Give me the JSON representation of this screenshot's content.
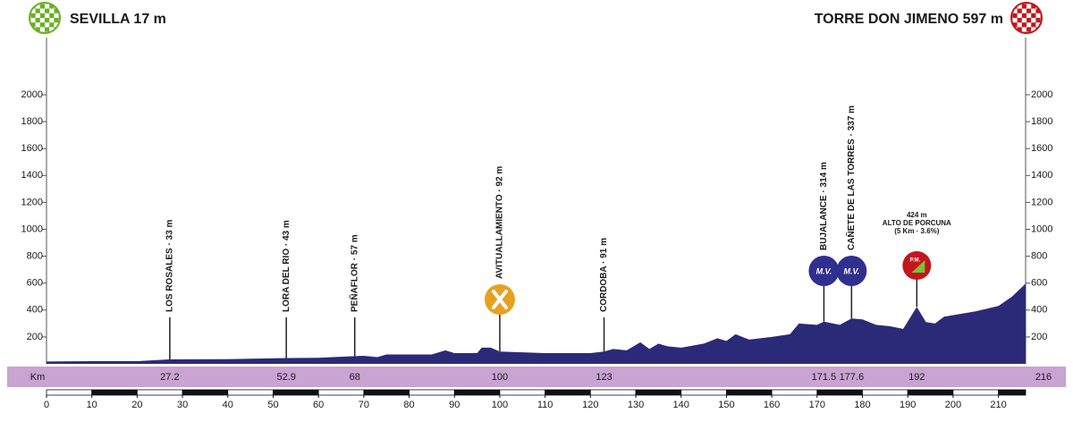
{
  "chart_data": {
    "type": "area",
    "start": {
      "label": "SEVILLA 17 m",
      "color": "#6ab023"
    },
    "finish": {
      "label": "TORRE DON JIMENO 597 m",
      "color": "#c4161c"
    },
    "color": "#2b2a78",
    "x": [
      0,
      10,
      20,
      27.2,
      40,
      52.9,
      60,
      68,
      70,
      73,
      75,
      85,
      88,
      90,
      95,
      96,
      98,
      100,
      110,
      120,
      123,
      125,
      128,
      131,
      133,
      135,
      137,
      140,
      145,
      148,
      150,
      152,
      155,
      160,
      164,
      166,
      170,
      171.5,
      175,
      177.6,
      180,
      183,
      186,
      189,
      192,
      194,
      196,
      198,
      205,
      210,
      213,
      216
    ],
    "values": [
      17,
      20,
      20,
      33,
      35,
      43,
      45,
      57,
      60,
      50,
      70,
      70,
      100,
      80,
      80,
      120,
      120,
      92,
      80,
      80,
      91,
      110,
      100,
      160,
      110,
      150,
      130,
      120,
      150,
      190,
      170,
      220,
      180,
      200,
      220,
      300,
      290,
      314,
      290,
      337,
      330,
      290,
      280,
      260,
      424,
      310,
      300,
      350,
      390,
      430,
      500,
      597
    ],
    "xlim": [
      0,
      216
    ],
    "xticks": [
      0,
      10,
      20,
      30,
      40,
      50,
      60,
      70,
      80,
      90,
      100,
      110,
      120,
      130,
      140,
      150,
      160,
      170,
      180,
      190,
      200,
      210
    ],
    "ylim": [
      0,
      2000
    ],
    "yticks": [
      200,
      400,
      600,
      800,
      1000,
      1200,
      1400,
      1600,
      1800,
      2000
    ],
    "km_label": "Km",
    "km_end": 216,
    "band_color": "#c9a3d1",
    "waypoints": [
      {
        "km": 27.2,
        "label": "LOS ROSALES · 33 m"
      },
      {
        "km": 52.9,
        "label": "LORA DEL RIO · 43 m"
      },
      {
        "km": 68,
        "label": "PEÑAFLOR · 57 m"
      },
      {
        "km": 100,
        "label": "AVITUALLAMIENTO · 92 m",
        "badge": {
          "color": "#e8a021"
        }
      },
      {
        "km": 123,
        "label": "CORDOBA · 91 m"
      },
      {
        "km": 171.5,
        "label": "BUJALANCE · 314 m",
        "badge": {
          "text": "M.V.",
          "color": "#2e2f8f"
        }
      },
      {
        "km": 177.6,
        "label": "CAÑETE DE LAS TORRES · 337 m",
        "badge": {
          "text": "M.V.",
          "color": "#2e2f8f"
        }
      },
      {
        "km": 192,
        "lines": [
          "424 m",
          "ALTO DE PORCUNA",
          "(5 Km · 3.6%)"
        ],
        "badge": {
          "text": "P.M.",
          "color": "#c4161c"
        }
      }
    ]
  }
}
